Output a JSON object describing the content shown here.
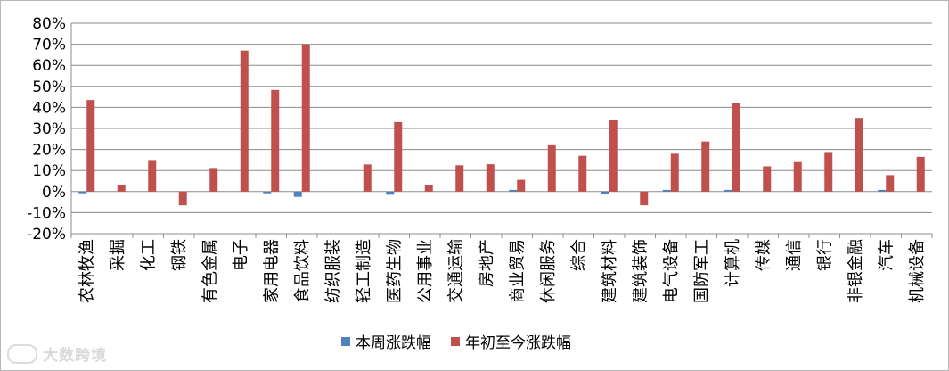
{
  "chart_data": {
    "type": "bar",
    "categories": [
      "农林牧渔",
      "采掘",
      "化工",
      "钢铁",
      "有色金属",
      "电子",
      "家用电器",
      "食品饮料",
      "纺织服装",
      "轻工制造",
      "医药生物",
      "公用事业",
      "交通运输",
      "房地产",
      "商业贸易",
      "休闲服务",
      "综合",
      "建筑材料",
      "建筑装饰",
      "电气设备",
      "国防军工",
      "计算机",
      "传媒",
      "通信",
      "银行",
      "非银金融",
      "汽车",
      "机械设备"
    ],
    "series": [
      {
        "name": "本周涨跌幅",
        "color": "#4f81bd",
        "values": [
          -0.8,
          0,
          0,
          0,
          0,
          0,
          -0.8,
          -2.5,
          0,
          0,
          -1.5,
          0,
          0,
          0,
          0.8,
          0,
          0,
          -1.2,
          0,
          0.8,
          0,
          0.8,
          0,
          0,
          0,
          0,
          0.8,
          0
        ]
      },
      {
        "name": "年初至今涨跌幅",
        "color": "#c0504d",
        "values": [
          43.5,
          3.3,
          15.0,
          -6.5,
          11.2,
          67.0,
          48.3,
          70.0,
          0,
          12.9,
          33.0,
          3.3,
          12.5,
          13.0,
          5.6,
          22.0,
          17.0,
          34.0,
          -6.5,
          18.0,
          23.8,
          42.0,
          12.0,
          14.0,
          18.8,
          35.0,
          7.8,
          16.5
        ]
      }
    ],
    "ylim": [
      -20,
      80
    ],
    "yticks": [
      -20,
      -10,
      0,
      10,
      20,
      30,
      40,
      50,
      60,
      70,
      80
    ],
    "ytick_labels": [
      "-20%",
      "-10%",
      "0%",
      "10%",
      "20%",
      "30%",
      "40%",
      "50%",
      "60%",
      "70%",
      "80%"
    ],
    "grid": true,
    "legend_position": "bottom"
  },
  "legend": {
    "weekly_label": "本周涨跌幅",
    "ytd_label": "年初至今涨跌幅",
    "weekly_color": "#4f81bd",
    "ytd_color": "#c0504d"
  },
  "watermark": {
    "text": "大数跨境"
  }
}
